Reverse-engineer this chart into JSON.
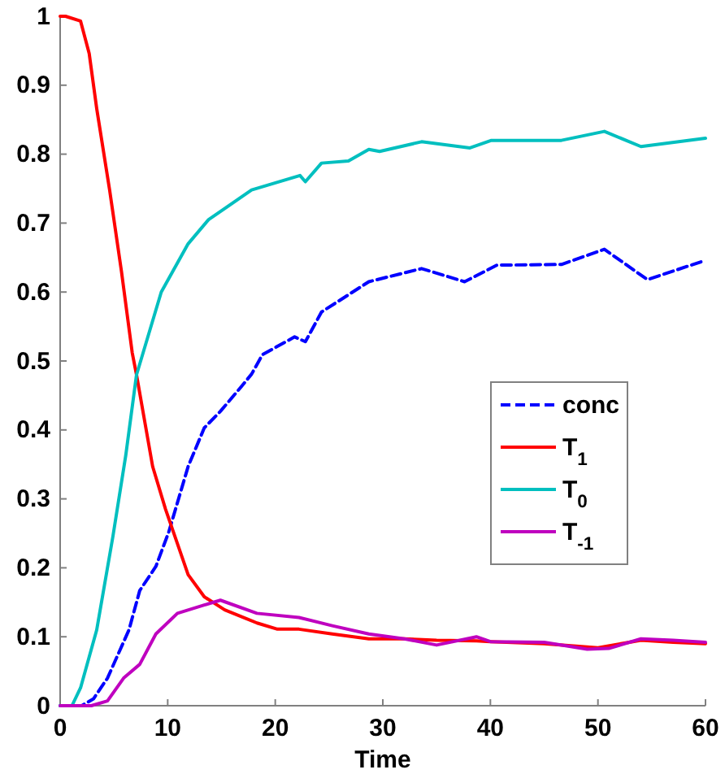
{
  "chart_data": {
    "type": "line",
    "xlabel": "Time",
    "xlim": [
      0,
      60
    ],
    "ylim": [
      0,
      1
    ],
    "xticks": [
      0,
      10,
      20,
      30,
      40,
      50,
      60
    ],
    "yticks": [
      0,
      0.1,
      0.2,
      0.3,
      0.4,
      0.5,
      0.6,
      0.7,
      0.8,
      0.9,
      1
    ],
    "grid": false,
    "legend": "right",
    "series": [
      {
        "name": "conc",
        "color": "#0000ff",
        "line_style": "dashed",
        "x": [
          0,
          2,
          3.1,
          4.4,
          6.4,
          7.4,
          8.9,
          10.1,
          11.9,
          13.4,
          14.9,
          16.8,
          17.8,
          18.8,
          21.8,
          22.8,
          24.3,
          28.7,
          33.6,
          37.6,
          40.6,
          46.6,
          50.6,
          54.6,
          60
        ],
        "values": [
          0,
          0,
          0.01,
          0.04,
          0.11,
          0.167,
          0.202,
          0.252,
          0.347,
          0.403,
          0.427,
          0.462,
          0.481,
          0.509,
          0.535,
          0.528,
          0.571,
          0.615,
          0.634,
          0.615,
          0.639,
          0.64,
          0.662,
          0.618,
          0.646
        ]
      },
      {
        "name": "T$_{1}$",
        "color": "#ff0000",
        "x": [
          0,
          0.5,
          1.9,
          2.7,
          3.4,
          4.6,
          5.7,
          6.7,
          7.1,
          8.6,
          9.8,
          11.9,
          13.4,
          15.3,
          18.3,
          20.2,
          22.2,
          25.3,
          28.7,
          32,
          35,
          38.7,
          40,
          45,
          50,
          54,
          57,
          60
        ],
        "values": [
          1,
          1,
          0.993,
          0.946,
          0.866,
          0.748,
          0.63,
          0.512,
          0.48,
          0.347,
          0.285,
          0.19,
          0.158,
          0.139,
          0.12,
          0.111,
          0.111,
          0.104,
          0.097,
          0.097,
          0.095,
          0.094,
          0.093,
          0.09,
          0.084,
          0.095,
          0.092,
          0.09
        ]
      },
      {
        "name": "T$_{0}$",
        "color": "#00bfbf",
        "x": [
          0,
          1.1,
          1.9,
          3.4,
          4.9,
          6.1,
          7.1,
          9.4,
          11.9,
          13.8,
          17.8,
          22.3,
          22.8,
          24.3,
          26.8,
          28.7,
          29.7,
          33.6,
          38.1,
          40.1,
          46.6,
          50.6,
          54,
          60
        ],
        "values": [
          0,
          0,
          0.026,
          0.11,
          0.245,
          0.363,
          0.48,
          0.6,
          0.67,
          0.705,
          0.748,
          0.769,
          0.76,
          0.787,
          0.79,
          0.807,
          0.804,
          0.818,
          0.809,
          0.82,
          0.82,
          0.833,
          0.811,
          0.823
        ]
      },
      {
        "name": "T$_{-1}$",
        "color": "#bf00bf",
        "x": [
          0,
          2.9,
          4.4,
          5.9,
          7.4,
          8.9,
          10.9,
          13.4,
          14.9,
          18.3,
          22.2,
          25.3,
          28.7,
          32,
          35,
          38.7,
          40,
          45,
          49,
          51,
          54,
          57,
          60
        ],
        "values": [
          0,
          0,
          0.007,
          0.04,
          0.06,
          0.104,
          0.134,
          0.146,
          0.153,
          0.134,
          0.128,
          0.116,
          0.104,
          0.097,
          0.088,
          0.1,
          0.093,
          0.092,
          0.082,
          0.083,
          0.097,
          0.095,
          0.092
        ]
      }
    ]
  }
}
